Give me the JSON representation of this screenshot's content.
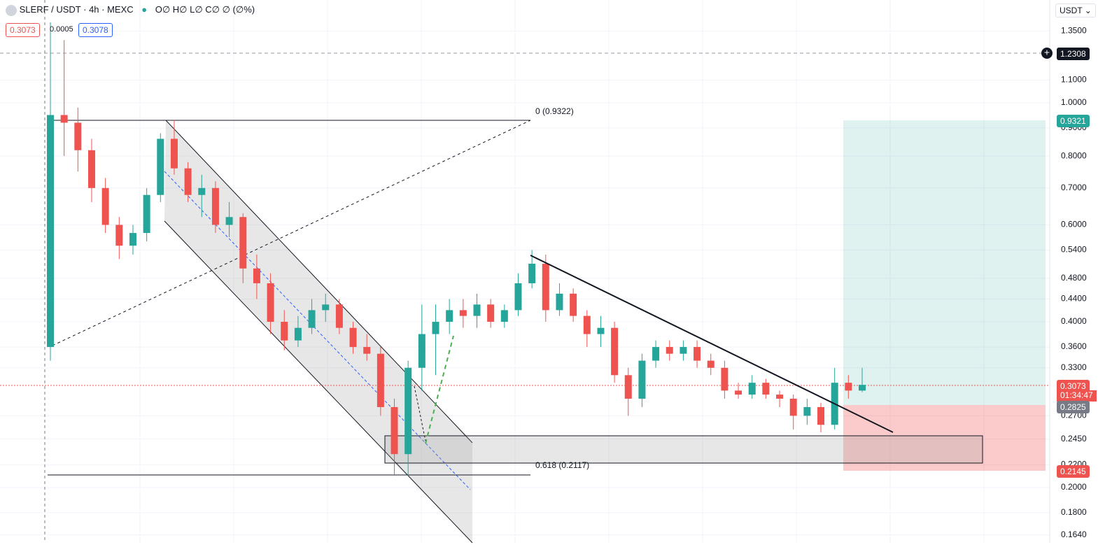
{
  "header": {
    "symbol": "SLERF / USDT · 4h · MEXC",
    "ohlc": "O∅ H∅ L∅ C∅ ∅ (∅%)",
    "bid": "0.3073",
    "spread": "0.0005",
    "ask": "0.3078",
    "currency": "USDT"
  },
  "chart_data": {
    "type": "candlestick",
    "log_scale": true,
    "grid": true,
    "up_color": "#26a69a",
    "down_color": "#ef5350",
    "ylim": [
      0.1587,
      1.537
    ],
    "yticks": [
      {
        "value": 1.35,
        "label": "1.3500"
      },
      {
        "value": 1.1,
        "label": "1.1000"
      },
      {
        "value": 1.0,
        "label": "1.0000"
      },
      {
        "value": 0.9,
        "label": "0.9000"
      },
      {
        "value": 0.8,
        "label": "0.8000"
      },
      {
        "value": 0.7,
        "label": "0.7000"
      },
      {
        "value": 0.6,
        "label": "0.6000"
      },
      {
        "value": 0.54,
        "label": "0.5400"
      },
      {
        "value": 0.48,
        "label": "0.4800"
      },
      {
        "value": 0.44,
        "label": "0.4400"
      },
      {
        "value": 0.4,
        "label": "0.4000"
      },
      {
        "value": 0.36,
        "label": "0.3600"
      },
      {
        "value": 0.33,
        "label": "0.3300"
      },
      {
        "value": 0.27,
        "label": "0.2700"
      },
      {
        "value": 0.245,
        "label": "0.2450"
      },
      {
        "value": 0.22,
        "label": "0.2200"
      },
      {
        "value": 0.2,
        "label": "0.2000"
      },
      {
        "value": 0.18,
        "label": "0.1800"
      },
      {
        "value": 0.164,
        "label": "0.1640"
      }
    ],
    "series": {
      "open": [
        0.36,
        0.95,
        0.92,
        0.82,
        0.7,
        0.6,
        0.55,
        0.58,
        0.68,
        0.86,
        0.76,
        0.68,
        0.7,
        0.6,
        0.62,
        0.5,
        0.47,
        0.4,
        0.37,
        0.39,
        0.42,
        0.43,
        0.39,
        0.36,
        0.35,
        0.28,
        0.23,
        0.33,
        0.38,
        0.4,
        0.42,
        0.41,
        0.43,
        0.4,
        0.42,
        0.47,
        0.51,
        0.42,
        0.45,
        0.41,
        0.38,
        0.39,
        0.32,
        0.29,
        0.34,
        0.36,
        0.35,
        0.36,
        0.34,
        0.33,
        0.3,
        0.295,
        0.31,
        0.295,
        0.29,
        0.27,
        0.28,
        0.26,
        0.31,
        0.3
      ],
      "high": [
        1.4,
        1.3,
        0.98,
        0.86,
        0.73,
        0.62,
        0.6,
        0.7,
        0.88,
        0.93,
        0.78,
        0.74,
        0.72,
        0.66,
        0.63,
        0.53,
        0.49,
        0.42,
        0.41,
        0.44,
        0.45,
        0.44,
        0.4,
        0.38,
        0.36,
        0.29,
        0.34,
        0.43,
        0.43,
        0.44,
        0.44,
        0.45,
        0.44,
        0.43,
        0.49,
        0.54,
        0.53,
        0.47,
        0.46,
        0.42,
        0.41,
        0.4,
        0.33,
        0.35,
        0.37,
        0.37,
        0.37,
        0.37,
        0.35,
        0.34,
        0.31,
        0.32,
        0.315,
        0.3,
        0.295,
        0.29,
        0.285,
        0.33,
        0.32,
        0.33
      ],
      "low": [
        0.34,
        0.8,
        0.75,
        0.66,
        0.58,
        0.52,
        0.53,
        0.56,
        0.66,
        0.74,
        0.66,
        0.62,
        0.58,
        0.57,
        0.47,
        0.44,
        0.38,
        0.355,
        0.36,
        0.38,
        0.4,
        0.38,
        0.35,
        0.34,
        0.27,
        0.21,
        0.21,
        0.3,
        0.32,
        0.38,
        0.39,
        0.39,
        0.39,
        0.39,
        0.41,
        0.46,
        0.4,
        0.41,
        0.4,
        0.36,
        0.36,
        0.31,
        0.27,
        0.28,
        0.33,
        0.34,
        0.34,
        0.33,
        0.32,
        0.29,
        0.29,
        0.29,
        0.29,
        0.28,
        0.255,
        0.26,
        0.252,
        0.255,
        0.29,
        0.298
      ],
      "close": [
        0.95,
        0.92,
        0.82,
        0.7,
        0.6,
        0.55,
        0.58,
        0.68,
        0.86,
        0.76,
        0.68,
        0.7,
        0.6,
        0.62,
        0.5,
        0.47,
        0.4,
        0.37,
        0.39,
        0.42,
        0.43,
        0.39,
        0.36,
        0.35,
        0.28,
        0.23,
        0.33,
        0.38,
        0.4,
        0.42,
        0.41,
        0.43,
        0.4,
        0.42,
        0.47,
        0.51,
        0.42,
        0.45,
        0.41,
        0.38,
        0.39,
        0.32,
        0.29,
        0.34,
        0.36,
        0.35,
        0.36,
        0.34,
        0.33,
        0.3,
        0.295,
        0.31,
        0.295,
        0.29,
        0.27,
        0.28,
        0.26,
        0.31,
        0.3,
        0.3073
      ]
    },
    "annotations": [
      "0 (0.9322)",
      "0.618 (0.2117)"
    ],
    "price_tags": [
      "1.2308",
      "0.9321",
      "0.3073",
      "01:34:47",
      "0.2825",
      "0.2145"
    ]
  }
}
